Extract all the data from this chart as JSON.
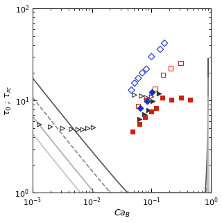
{
  "xlabel": "$Ca_B$",
  "ylabel": "$\\tau_0$ ; $\\tau_{rc}$",
  "xlim_log": [
    -3,
    0
  ],
  "ylim_log": [
    0,
    2
  ],
  "curve1": {
    "color": "#555555",
    "ls": "-",
    "lw": 1.2,
    "A": 0.4,
    "n": 1.5
  },
  "curve2": {
    "color": "#888888",
    "ls": "--",
    "lw": 1.2,
    "A": 0.25,
    "n": 1.5
  },
  "curve3": {
    "color": "#aaaaaa",
    "ls": "-",
    "lw": 1.2,
    "A": 0.16,
    "n": 1.5
  },
  "curve4": {
    "color": "#c0c0c0",
    "ls": "-",
    "lw": 1.2,
    "A": 0.1,
    "n": 1.5
  },
  "open_tri_black_low": {
    "x": [
      0.0013,
      0.002,
      0.0032,
      0.0045,
      0.0058,
      0.007,
      0.0085,
      0.0105
    ],
    "y": [
      5.5,
      5.2,
      5.0,
      4.9,
      4.85,
      4.85,
      5.0,
      5.1
    ],
    "fc": "none",
    "ec": "#333333",
    "marker": ">",
    "s": 20
  },
  "open_tri_black_mid": {
    "x": [
      0.052,
      0.068,
      0.082,
      0.1
    ],
    "y": [
      11.5,
      11.2,
      10.8,
      11.0
    ],
    "fc": "none",
    "ec": "#333333",
    "marker": ">",
    "s": 20
  },
  "open_diamond_blue": {
    "x": [
      0.046,
      0.052,
      0.06,
      0.07,
      0.082,
      0.1,
      0.14,
      0.165
    ],
    "y": [
      13.0,
      15.5,
      17.5,
      20.0,
      22.0,
      30.0,
      36.0,
      42.0
    ],
    "fc": "none",
    "ec": "#1133cc",
    "marker": "D",
    "s": 22
  },
  "open_sq_red": {
    "x": [
      0.06,
      0.082,
      0.115,
      0.155,
      0.21,
      0.31
    ],
    "y": [
      8.8,
      10.2,
      13.5,
      19.0,
      22.5,
      25.5
    ],
    "fc": "none",
    "ec": "#cc2211",
    "marker": "s",
    "s": 20
  },
  "filled_tri_black": {
    "x": [
      0.062,
      0.075,
      0.088,
      0.105,
      0.132
    ],
    "y": [
      6.3,
      7.1,
      7.9,
      9.8,
      12.0
    ],
    "fc": "#333333",
    "ec": "#333333",
    "marker": ">",
    "s": 20
  },
  "filled_diamond_blue": {
    "x": [
      0.065,
      0.085,
      0.103
    ],
    "y": [
      8.3,
      9.8,
      12.3
    ],
    "fc": "#1133cc",
    "ec": "#1133cc",
    "marker": "D",
    "s": 20
  },
  "filled_sq_red": {
    "x": [
      0.048,
      0.062,
      0.078,
      0.098,
      0.118,
      0.152,
      0.218,
      0.315,
      0.445
    ],
    "y": [
      4.6,
      5.6,
      6.6,
      7.6,
      8.3,
      10.8,
      10.3,
      10.8,
      10.3
    ],
    "fc": "#cc2211",
    "ec": "#cc2211",
    "marker": "s",
    "s": 20
  }
}
